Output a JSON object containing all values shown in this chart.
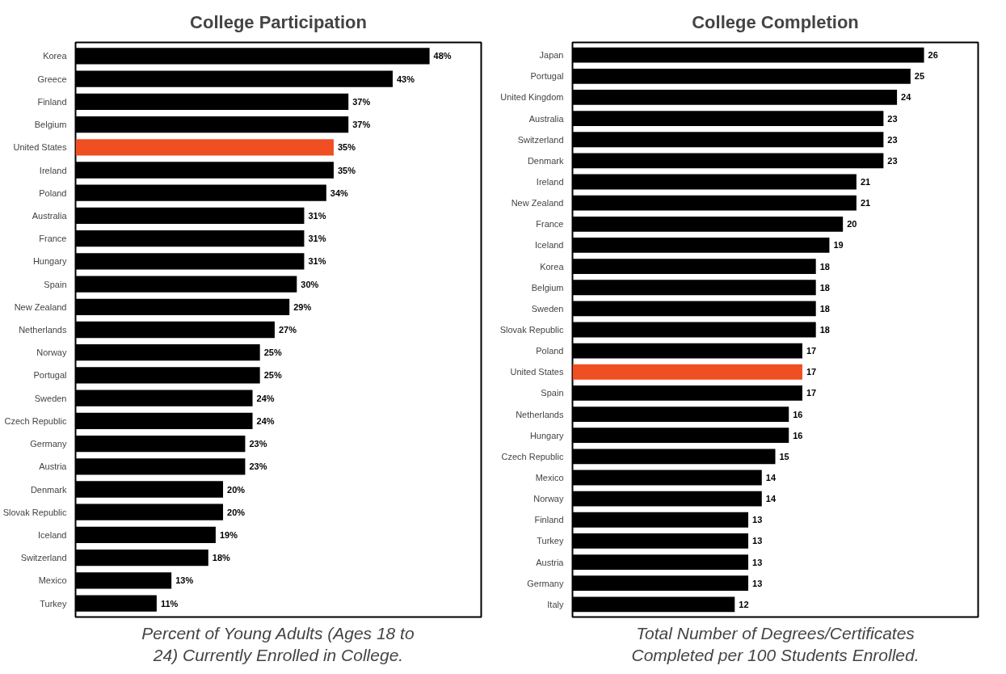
{
  "chart_data": [
    {
      "type": "bar",
      "orientation": "horizontal",
      "title": "College Participation",
      "xlabel": "Percent of Young Adults (Ages 18 to 24) Currently Enrolled in College.",
      "tick_labels": "y",
      "grid": false,
      "xlim": [
        0,
        55
      ],
      "categories": [
        "Korea",
        "Greece",
        "Finland",
        "Belgium",
        "United States",
        "Ireland",
        "Poland",
        "Australia",
        "France",
        "Hungary",
        "Spain",
        "New Zealand",
        "Netherlands",
        "Norway",
        "Portugal",
        "Sweden",
        "Czech Republic",
        "Germany",
        "Austria",
        "Denmark",
        "Slovak Republic",
        "Iceland",
        "Switzerland",
        "Mexico",
        "Turkey"
      ],
      "values": [
        48,
        43,
        37,
        37,
        35,
        35,
        34,
        31,
        31,
        31,
        30,
        29,
        27,
        25,
        25,
        24,
        24,
        23,
        23,
        20,
        20,
        19,
        18,
        13,
        11
      ],
      "value_labels": [
        "48%",
        "43%",
        "37%",
        "37%",
        "35%",
        "35%",
        "34%",
        "31%",
        "31%",
        "31%",
        "30%",
        "29%",
        "27%",
        "25%",
        "25%",
        "24%",
        "24%",
        "23%",
        "23%",
        "20%",
        "20%",
        "19%",
        "18%",
        "13%",
        "11%"
      ],
      "colors": [
        "#000000",
        "#000000",
        "#000000",
        "#000000",
        "#f04e23",
        "#000000",
        "#000000",
        "#000000",
        "#000000",
        "#000000",
        "#000000",
        "#000000",
        "#000000",
        "#000000",
        "#000000",
        "#000000",
        "#000000",
        "#000000",
        "#000000",
        "#000000",
        "#000000",
        "#000000",
        "#000000",
        "#000000",
        "#000000"
      ]
    },
    {
      "type": "bar",
      "orientation": "horizontal",
      "title": "College Completion",
      "xlabel": "Total Number of Degrees/Certificates Completed per 100 Students Enrolled.",
      "tick_labels": "y",
      "grid": false,
      "xlim": [
        0,
        30
      ],
      "data_labels": true,
      "categories": [
        "Japan",
        "Portugal",
        "United Kingdom",
        "Australia",
        "Switzerland",
        "Denmark",
        "Ireland",
        "New Zealand",
        "France",
        "Iceland",
        "Korea",
        "Belgium",
        "Sweden",
        "Slovak Republic",
        "Poland",
        "United States",
        "Spain",
        "Netherlands",
        "Hungary",
        "Czech Republic",
        "Mexico",
        "Norway",
        "Finland",
        "Turkey",
        "Austria",
        "Germany",
        "Italy"
      ],
      "values": [
        26,
        25,
        24,
        23,
        23,
        23,
        21,
        21,
        20,
        19,
        18,
        18,
        18,
        18,
        17,
        17,
        17,
        16,
        16,
        15,
        14,
        14,
        13,
        13,
        13,
        13,
        12
      ],
      "colors": [
        "#000000",
        "#000000",
        "#000000",
        "#000000",
        "#000000",
        "#000000",
        "#000000",
        "#000000",
        "#000000",
        "#000000",
        "#000000",
        "#000000",
        "#000000",
        "#000000",
        "#000000",
        "#f04e23",
        "#000000",
        "#000000",
        "#000000",
        "#000000",
        "#000000",
        "#000000",
        "#000000",
        "#000000",
        "#000000",
        "#000000",
        "#000000"
      ]
    }
  ]
}
